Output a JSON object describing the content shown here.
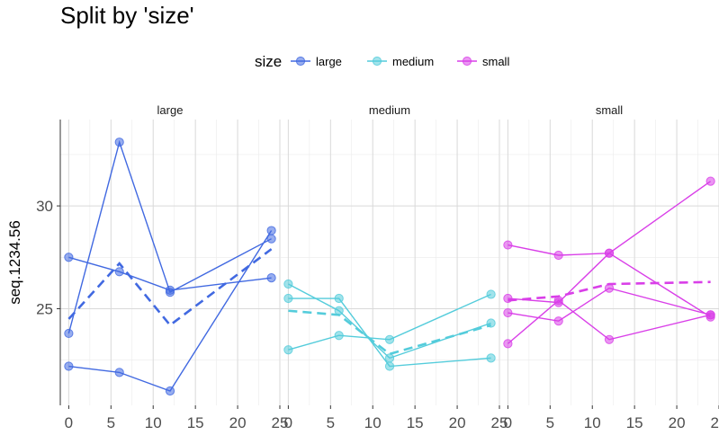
{
  "chart_data": {
    "type": "line",
    "title": "Split by 'size'",
    "facet_by": "size",
    "xlabel": "",
    "ylabel": "seq.1234.56",
    "xlim": [
      -1,
      25
    ],
    "ylim": [
      20.3,
      34.2
    ],
    "x_ticks": [
      0,
      5,
      10,
      15,
      20,
      25
    ],
    "y_ticks": [
      25,
      30
    ],
    "grid": true,
    "legend": {
      "title": "size",
      "position": "top",
      "entries": [
        "large",
        "medium",
        "small"
      ]
    },
    "colors": {
      "large": "#4169e1",
      "medium": "#54ccdb",
      "small": "#d93fe8"
    },
    "panels": [
      {
        "label": "large",
        "lines": [
          {
            "x": [
              0,
              6,
              12,
              24
            ],
            "y": [
              27.5,
              26.8,
              25.9,
              26.5
            ]
          },
          {
            "x": [
              0,
              6,
              12,
              24
            ],
            "y": [
              23.8,
              33.1,
              25.8,
              28.4
            ]
          },
          {
            "x": [
              0,
              6,
              12,
              24
            ],
            "y": [
              22.2,
              21.9,
              21.0,
              28.8
            ]
          }
        ],
        "mean": {
          "x": [
            0,
            6,
            12,
            24
          ],
          "y": [
            24.5,
            27.2,
            24.2,
            27.9
          ]
        }
      },
      {
        "label": "medium",
        "lines": [
          {
            "x": [
              0,
              6,
              12,
              24
            ],
            "y": [
              26.2,
              24.9,
              22.6,
              24.3
            ]
          },
          {
            "x": [
              0,
              6,
              12,
              24
            ],
            "y": [
              25.5,
              25.5,
              22.2,
              22.6
            ]
          },
          {
            "x": [
              0,
              6,
              12,
              24
            ],
            "y": [
              23.0,
              23.7,
              23.5,
              25.7
            ]
          }
        ],
        "mean": {
          "x": [
            0,
            6,
            12,
            24
          ],
          "y": [
            24.9,
            24.7,
            22.8,
            24.2
          ]
        }
      },
      {
        "label": "small",
        "lines": [
          {
            "x": [
              0,
              6,
              12,
              24
            ],
            "y": [
              28.1,
              27.6,
              27.7,
              24.6
            ]
          },
          {
            "x": [
              0,
              6,
              12,
              24
            ],
            "y": [
              25.5,
              25.3,
              27.7,
              31.2
            ]
          },
          {
            "x": [
              0,
              6,
              12,
              24
            ],
            "y": [
              24.8,
              24.4,
              26.0,
              24.7
            ]
          },
          {
            "x": [
              0,
              6,
              12,
              24
            ],
            "y": [
              23.3,
              25.4,
              23.5,
              24.7
            ]
          }
        ],
        "mean": {
          "x": [
            0,
            6,
            12,
            24
          ],
          "y": [
            25.4,
            25.6,
            26.2,
            26.3
          ]
        }
      }
    ]
  }
}
